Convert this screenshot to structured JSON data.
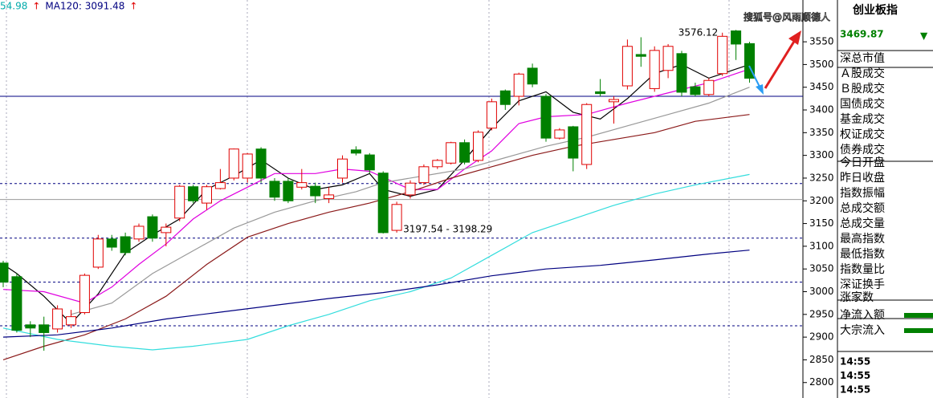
{
  "chart_data": {
    "type": "candlestick",
    "header": [
      {
        "text": "54.98",
        "color": "#0aa"
      },
      {
        "text": "↑",
        "color": "#e00000"
      },
      {
        "text": "MA120: 3091.48",
        "color": "#000080"
      },
      {
        "text": "↑",
        "color": "#e00000"
      }
    ],
    "up_color": "#e00000",
    "down_color": "#008000",
    "ylim": [
      2766,
      3642
    ],
    "yticks": [
      2800,
      2850,
      2900,
      2950,
      3000,
      3050,
      3100,
      3150,
      3200,
      3250,
      3300,
      3350,
      3400,
      3450,
      3500,
      3550
    ],
    "candles": [
      {
        "o": 3063,
        "h": 3068,
        "l": 3010,
        "c": 3021
      },
      {
        "o": 3033,
        "h": 3040,
        "l": 2910,
        "c": 2915
      },
      {
        "o": 2927,
        "h": 2935,
        "l": 2900,
        "c": 2920
      },
      {
        "o": 2927,
        "h": 2945,
        "l": 2870,
        "c": 2910
      },
      {
        "o": 2918,
        "h": 2970,
        "l": 2910,
        "c": 2962
      },
      {
        "o": 2927,
        "h": 2960,
        "l": 2920,
        "c": 2945
      },
      {
        "o": 2954,
        "h": 3040,
        "l": 2950,
        "c": 3036
      },
      {
        "o": 3054,
        "h": 3125,
        "l": 3050,
        "c": 3116
      },
      {
        "o": 3116,
        "h": 3125,
        "l": 3090,
        "c": 3098
      },
      {
        "o": 3121,
        "h": 3130,
        "l": 3080,
        "c": 3086
      },
      {
        "o": 3116,
        "h": 3150,
        "l": 3110,
        "c": 3144
      },
      {
        "o": 3165,
        "h": 3170,
        "l": 3110,
        "c": 3118
      },
      {
        "o": 3130,
        "h": 3150,
        "l": 3100,
        "c": 3142
      },
      {
        "o": 3162,
        "h": 3235,
        "l": 3155,
        "c": 3232
      },
      {
        "o": 3231,
        "h": 3235,
        "l": 3195,
        "c": 3200
      },
      {
        "o": 3195,
        "h": 3235,
        "l": 3180,
        "c": 3231
      },
      {
        "o": 3227,
        "h": 3270,
        "l": 3225,
        "c": 3240
      },
      {
        "o": 3250,
        "h": 3315,
        "l": 3245,
        "c": 3314
      },
      {
        "o": 3250,
        "h": 3305,
        "l": 3240,
        "c": 3303
      },
      {
        "o": 3314,
        "h": 3318,
        "l": 3240,
        "c": 3250
      },
      {
        "o": 3243,
        "h": 3250,
        "l": 3200,
        "c": 3208
      },
      {
        "o": 3243,
        "h": 3250,
        "l": 3195,
        "c": 3200
      },
      {
        "o": 3230,
        "h": 3270,
        "l": 3225,
        "c": 3240
      },
      {
        "o": 3232,
        "h": 3240,
        "l": 3195,
        "c": 3211
      },
      {
        "o": 3205,
        "h": 3230,
        "l": 3195,
        "c": 3213
      },
      {
        "o": 3250,
        "h": 3300,
        "l": 3240,
        "c": 3292
      },
      {
        "o": 3312,
        "h": 3320,
        "l": 3300,
        "c": 3305
      },
      {
        "o": 3301,
        "h": 3305,
        "l": 3260,
        "c": 3268
      },
      {
        "o": 3261,
        "h": 3265,
        "l": 3128,
        "c": 3130
      },
      {
        "o": 3135,
        "h": 3198,
        "l": 3130,
        "c": 3192
      },
      {
        "o": 3213,
        "h": 3245,
        "l": 3205,
        "c": 3239
      },
      {
        "o": 3240,
        "h": 3280,
        "l": 3235,
        "c": 3275
      },
      {
        "o": 3275,
        "h": 3292,
        "l": 3270,
        "c": 3289
      },
      {
        "o": 3283,
        "h": 3330,
        "l": 3280,
        "c": 3328
      },
      {
        "o": 3328,
        "h": 3335,
        "l": 3280,
        "c": 3285
      },
      {
        "o": 3289,
        "h": 3355,
        "l": 3285,
        "c": 3351
      },
      {
        "o": 3360,
        "h": 3425,
        "l": 3355,
        "c": 3418
      },
      {
        "o": 3442,
        "h": 3445,
        "l": 3400,
        "c": 3412
      },
      {
        "o": 3430,
        "h": 3482,
        "l": 3410,
        "c": 3479
      },
      {
        "o": 3492,
        "h": 3502,
        "l": 3450,
        "c": 3457
      },
      {
        "o": 3430,
        "h": 3435,
        "l": 3330,
        "c": 3338
      },
      {
        "o": 3338,
        "h": 3360,
        "l": 3335,
        "c": 3356
      },
      {
        "o": 3363,
        "h": 3365,
        "l": 3265,
        "c": 3294
      },
      {
        "o": 3280,
        "h": 3415,
        "l": 3270,
        "c": 3412
      },
      {
        "o": 3440,
        "h": 3468,
        "l": 3430,
        "c": 3436
      },
      {
        "o": 3418,
        "h": 3430,
        "l": 3370,
        "c": 3423
      },
      {
        "o": 3453,
        "h": 3555,
        "l": 3445,
        "c": 3540
      },
      {
        "o": 3522,
        "h": 3560,
        "l": 3495,
        "c": 3518
      },
      {
        "o": 3447,
        "h": 3540,
        "l": 3440,
        "c": 3531
      },
      {
        "o": 3487,
        "h": 3545,
        "l": 3470,
        "c": 3540
      },
      {
        "o": 3524,
        "h": 3530,
        "l": 3430,
        "c": 3439
      },
      {
        "o": 3451,
        "h": 3460,
        "l": 3430,
        "c": 3434
      },
      {
        "o": 3434,
        "h": 3470,
        "l": 3430,
        "c": 3465
      },
      {
        "o": 3480,
        "h": 3570,
        "l": 3475,
        "c": 3562
      },
      {
        "o": 3574,
        "h": 3576.12,
        "l": 3510,
        "c": 3545
      },
      {
        "o": 3546,
        "h": 3550,
        "l": 3460,
        "c": 3469.87
      }
    ],
    "lines": [
      {
        "color": "#000000",
        "x": [
          0,
          1,
          3,
          5,
          7,
          9,
          11,
          13,
          15,
          17,
          19,
          21,
          23,
          25,
          27,
          28,
          30,
          32,
          34,
          36,
          38,
          40,
          42,
          44,
          46,
          48,
          50,
          52,
          54,
          55
        ],
        "values": [
          3060,
          3040,
          2990,
          2930,
          2995,
          3085,
          3125,
          3160,
          3225,
          3255,
          3290,
          3250,
          3225,
          3235,
          3260,
          3225,
          3210,
          3225,
          3290,
          3360,
          3420,
          3440,
          3395,
          3380,
          3425,
          3480,
          3500,
          3470,
          3490,
          3500
        ]
      },
      {
        "color": "#e000e0",
        "x": [
          0,
          3,
          6,
          8,
          10,
          12,
          14,
          16,
          18,
          20,
          23,
          25,
          27,
          30,
          32,
          34,
          36,
          38,
          40,
          43,
          46,
          48,
          50,
          52,
          55
        ],
        "values": [
          3005,
          3000,
          2975,
          3010,
          3060,
          3105,
          3160,
          3200,
          3230,
          3260,
          3260,
          3270,
          3265,
          3225,
          3225,
          3270,
          3310,
          3370,
          3385,
          3390,
          3415,
          3430,
          3445,
          3460,
          3490
        ]
      },
      {
        "color": "#999999",
        "x": [
          5,
          8,
          11,
          14,
          17,
          20,
          23,
          26,
          28,
          31,
          34,
          37,
          40,
          43,
          46,
          49,
          52,
          55
        ],
        "values": [
          2950,
          2975,
          3040,
          3090,
          3140,
          3175,
          3200,
          3220,
          3240,
          3255,
          3270,
          3295,
          3320,
          3340,
          3365,
          3390,
          3415,
          3450
        ]
      },
      {
        "color": "#8b1a1a",
        "x": [
          0,
          3,
          6,
          9,
          12,
          15,
          18,
          21,
          24,
          27,
          30,
          33,
          36,
          39,
          42,
          45,
          48,
          51,
          55
        ],
        "values": [
          2850,
          2880,
          2905,
          2940,
          2990,
          3060,
          3120,
          3150,
          3175,
          3195,
          3220,
          3250,
          3275,
          3300,
          3320,
          3335,
          3350,
          3375,
          3390
        ]
      },
      {
        "color": "#33dddd",
        "x": [
          0,
          4,
          8,
          11,
          14,
          18,
          21,
          24,
          27,
          30,
          33,
          36,
          39,
          42,
          45,
          48,
          51,
          55
        ],
        "values": [
          2920,
          2895,
          2880,
          2872,
          2880,
          2895,
          2925,
          2950,
          2980,
          3000,
          3030,
          3080,
          3130,
          3160,
          3190,
          3215,
          3235,
          3258
        ]
      },
      {
        "color": "#000080",
        "x": [
          0,
          4,
          8,
          12,
          16,
          20,
          24,
          28,
          32,
          36,
          40,
          44,
          48,
          52,
          55
        ],
        "values": [
          2900,
          2905,
          2920,
          2940,
          2955,
          2970,
          2985,
          2998,
          3015,
          3035,
          3050,
          3058,
          3070,
          3083,
          3091.48
        ]
      }
    ],
    "hlines": [
      {
        "value": 3430,
        "color": "#000080",
        "dashed": false
      },
      {
        "value": 3238,
        "color": "#000080",
        "dashed": true
      },
      {
        "value": 3203,
        "color": "#999999",
        "dashed": false
      },
      {
        "value": 3118,
        "color": "#000080",
        "dashed": true
      },
      {
        "value": 3021,
        "color": "#000080",
        "dashed": true
      },
      {
        "value": 2925,
        "color": "#000080",
        "dashed": true
      }
    ],
    "annotations": [
      {
        "text": "3576.12",
        "index": 53
      },
      {
        "text": "3197.54 - 3198.29",
        "index": 29
      }
    ],
    "watermark": "搜狐号@风雨顺德人",
    "panel": {
      "title": "创业板指",
      "price": "3469.87",
      "direction": "▼",
      "rows": [
        "深总市值",
        "Ａ股成交",
        "Ｂ股成交",
        "国债成交",
        "基金成交",
        "权证成交",
        "债券成交",
        "今日开盘",
        "昨日收盘",
        "指数振幅",
        "总成交额",
        "总成交量",
        "最高指数",
        "最低指数",
        "指数量比",
        "深证换手",
        "涨家数",
        "净流入额",
        "大宗流入"
      ],
      "times": [
        "14:55",
        "14:55",
        "14:55"
      ]
    }
  }
}
